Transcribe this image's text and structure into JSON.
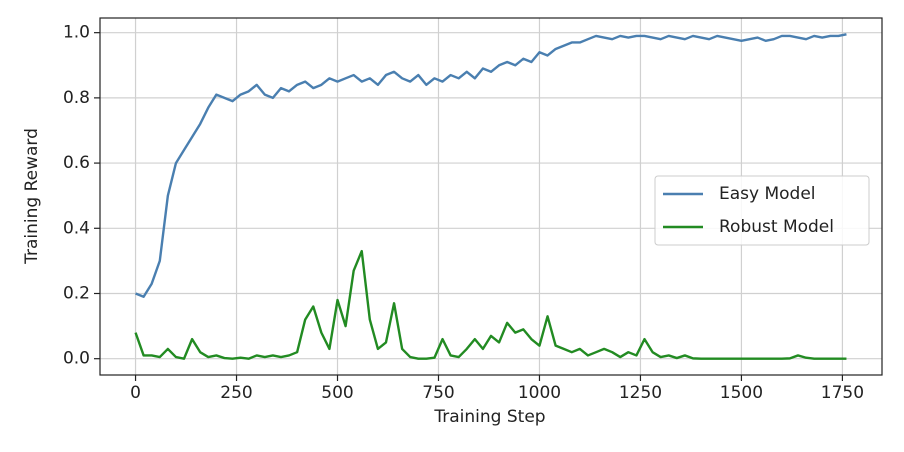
{
  "chart_data": {
    "type": "line",
    "x_label": "Training Step",
    "y_label": "Training Reward",
    "x": [
      0,
      20,
      40,
      60,
      80,
      100,
      120,
      140,
      160,
      180,
      200,
      220,
      240,
      260,
      280,
      300,
      320,
      340,
      360,
      380,
      400,
      420,
      440,
      460,
      480,
      500,
      520,
      540,
      560,
      580,
      600,
      620,
      640,
      660,
      680,
      700,
      720,
      740,
      760,
      780,
      800,
      820,
      840,
      860,
      880,
      900,
      920,
      940,
      960,
      980,
      1000,
      1020,
      1040,
      1060,
      1080,
      1100,
      1120,
      1140,
      1160,
      1180,
      1200,
      1220,
      1240,
      1260,
      1280,
      1300,
      1320,
      1340,
      1360,
      1380,
      1400,
      1420,
      1440,
      1460,
      1480,
      1500,
      1520,
      1540,
      1560,
      1580,
      1600,
      1620,
      1640,
      1660,
      1680,
      1700,
      1720,
      1740,
      1760
    ],
    "series": [
      {
        "name": "Easy Model",
        "color": "#4a7fb0",
        "values": [
          0.2,
          0.19,
          0.23,
          0.3,
          0.5,
          0.6,
          0.64,
          0.68,
          0.72,
          0.77,
          0.81,
          0.8,
          0.79,
          0.81,
          0.82,
          0.84,
          0.81,
          0.8,
          0.83,
          0.82,
          0.84,
          0.85,
          0.83,
          0.84,
          0.86,
          0.85,
          0.86,
          0.87,
          0.85,
          0.86,
          0.84,
          0.87,
          0.88,
          0.86,
          0.85,
          0.87,
          0.84,
          0.86,
          0.85,
          0.87,
          0.86,
          0.88,
          0.86,
          0.89,
          0.88,
          0.9,
          0.91,
          0.9,
          0.92,
          0.91,
          0.94,
          0.93,
          0.95,
          0.96,
          0.97,
          0.97,
          0.98,
          0.99,
          0.985,
          0.98,
          0.99,
          0.985,
          0.99,
          0.99,
          0.985,
          0.98,
          0.99,
          0.985,
          0.98,
          0.99,
          0.985,
          0.98,
          0.99,
          0.985,
          0.98,
          0.975,
          0.98,
          0.985,
          0.975,
          0.98,
          0.99,
          0.99,
          0.985,
          0.98,
          0.99,
          0.985,
          0.99,
          0.99,
          0.995
        ]
      },
      {
        "name": "Robust Model",
        "color": "#228b22",
        "values": [
          0.08,
          0.01,
          0.01,
          0.005,
          0.03,
          0.005,
          0,
          0.06,
          0.02,
          0.005,
          0.01,
          0.002,
          0,
          0.003,
          0,
          0.01,
          0.005,
          0.01,
          0.005,
          0.01,
          0.02,
          0.12,
          0.16,
          0.08,
          0.03,
          0.18,
          0.1,
          0.27,
          0.33,
          0.12,
          0.03,
          0.05,
          0.17,
          0.03,
          0.005,
          0,
          0,
          0.003,
          0.06,
          0.01,
          0.005,
          0.03,
          0.06,
          0.03,
          0.07,
          0.05,
          0.11,
          0.08,
          0.09,
          0.06,
          0.04,
          0.13,
          0.04,
          0.03,
          0.02,
          0.03,
          0.01,
          0.02,
          0.03,
          0.02,
          0.005,
          0.02,
          0.01,
          0.06,
          0.02,
          0.005,
          0.01,
          0.002,
          0.01,
          0.001,
          0,
          0,
          0,
          0,
          0,
          0,
          0,
          0,
          0,
          0,
          0,
          0.001,
          0.01,
          0.003,
          0,
          0,
          0,
          0,
          0
        ]
      }
    ],
    "xlim": [
      -88,
      1848
    ],
    "ylim": [
      -0.05,
      1.045
    ],
    "xticks": [
      0,
      250,
      500,
      750,
      1000,
      1250,
      1500,
      1750
    ],
    "yticks": [
      {
        "value": 0,
        "label": "0.0"
      },
      {
        "value": 0.2,
        "label": "0.2"
      },
      {
        "value": 0.4,
        "label": "0.4"
      },
      {
        "value": 0.6,
        "label": "0.6"
      },
      {
        "value": 0.8,
        "label": "0.8"
      },
      {
        "value": 1,
        "label": "1.0"
      }
    ],
    "grid": true,
    "legend": "right"
  }
}
